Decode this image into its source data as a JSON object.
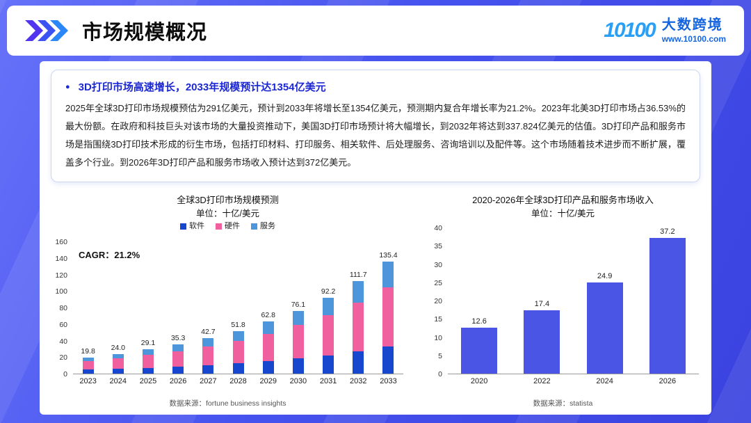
{
  "header": {
    "title": "市场规模概况",
    "logo_mark": "10100",
    "brand": "大数跨境",
    "website": "www.10100.com"
  },
  "summary": {
    "bullet": "●",
    "headline": "3D打印市场高速增长，2033年规模预计达1354亿美元",
    "body": "2025年全球3D打印市场规模预估为291亿美元，预计到2033年将增长至1354亿美元，预测期内复合年增长率为21.2%。2023年北美3D打印市场占36.53%的最大份额。在政府和科技巨头对该市场的大量投资推动下，美国3D打印市场预计将大幅增长，到2032年将达到337.824亿美元的估值。3D打印产品和服务市场是指围绕3D打印技术形成的衍生市场，包括打印材料、打印服务、相关软件、后处理服务、咨询培训以及配件等。这个市场随着技术进步而不断扩展，覆盖多个行业。到2026年3D打印产品和服务市场收入预计达到372亿美元。"
  },
  "chart_data": [
    {
      "type": "bar",
      "stacked": true,
      "title": "全球3D打印市场规模预测",
      "subtitle": "单位：十亿/美元",
      "annotation": "CAGR：21.2%",
      "categories": [
        "2023",
        "2024",
        "2025",
        "2026",
        "2027",
        "2028",
        "2029",
        "2030",
        "2031",
        "2032",
        "2033"
      ],
      "labels": [
        "19.8",
        "24.0",
        "29.1",
        "35.3",
        "42.7",
        "51.8",
        "62.8",
        "76.1",
        "92.2",
        "111.7",
        "135.4"
      ],
      "totals": [
        19.8,
        24.0,
        29.1,
        35.3,
        42.7,
        51.8,
        62.8,
        76.1,
        92.2,
        111.7,
        135.4
      ],
      "series": [
        {
          "name": "软件",
          "color": "#1746cf",
          "values": [
            4.8,
            5.8,
            7.0,
            8.5,
            10.2,
            12.4,
            15.1,
            18.3,
            22.1,
            26.8,
            32.5
          ]
        },
        {
          "name": "硬件",
          "color": "#f0609f",
          "values": [
            10.5,
            12.7,
            15.4,
            18.7,
            22.6,
            27.5,
            33.3,
            40.3,
            48.9,
            59.2,
            71.8
          ]
        },
        {
          "name": "服务",
          "color": "#4e96dc",
          "values": [
            4.5,
            5.5,
            6.7,
            8.1,
            9.9,
            11.9,
            14.4,
            17.5,
            21.2,
            25.7,
            31.1
          ]
        }
      ],
      "ylim": [
        0,
        160
      ],
      "yticks": [
        0,
        20,
        40,
        60,
        80,
        100,
        120,
        140,
        160
      ],
      "legend_position": "top",
      "grid": false,
      "source": "数据来源：fortune business insights"
    },
    {
      "type": "bar",
      "stacked": false,
      "title": "2020-2026年全球3D打印产品和服务市场收入",
      "subtitle": "单位：十亿/美元",
      "categories": [
        "2020",
        "2022",
        "2024",
        "2026"
      ],
      "values": [
        12.6,
        17.4,
        24.9,
        37.2
      ],
      "labels": [
        "12.6",
        "17.4",
        "24.9",
        "37.2"
      ],
      "bar_color": "#4a55e5",
      "ylim": [
        0,
        40
      ],
      "yticks": [
        0,
        5,
        10,
        15,
        20,
        25,
        30,
        35,
        40
      ],
      "grid": false,
      "source": "数据来源：statista"
    }
  ]
}
